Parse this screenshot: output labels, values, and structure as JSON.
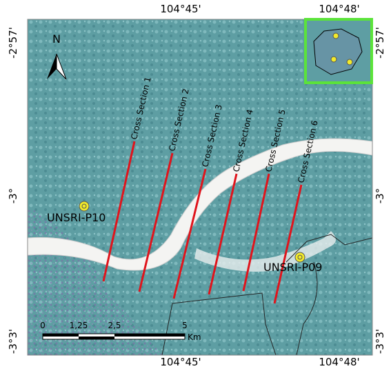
{
  "map": {
    "longitudes": [
      "104°45'",
      "104°48'"
    ],
    "latitudes": [
      "-2°57'",
      "-3°",
      "-3°3'"
    ],
    "north": "N",
    "cross_sections": [
      "Cross Section 1",
      "Cross Section 2",
      "Cross Section 3",
      "Cross Section 4",
      "Cross Section 5",
      "Cross Section 6"
    ],
    "stations": [
      "UNSRI-P10",
      "UNSRI-P09"
    ],
    "scale_bar": {
      "ticks": [
        "0",
        "1,25",
        "2,5",
        "5"
      ],
      "unit": "Km"
    }
  }
}
